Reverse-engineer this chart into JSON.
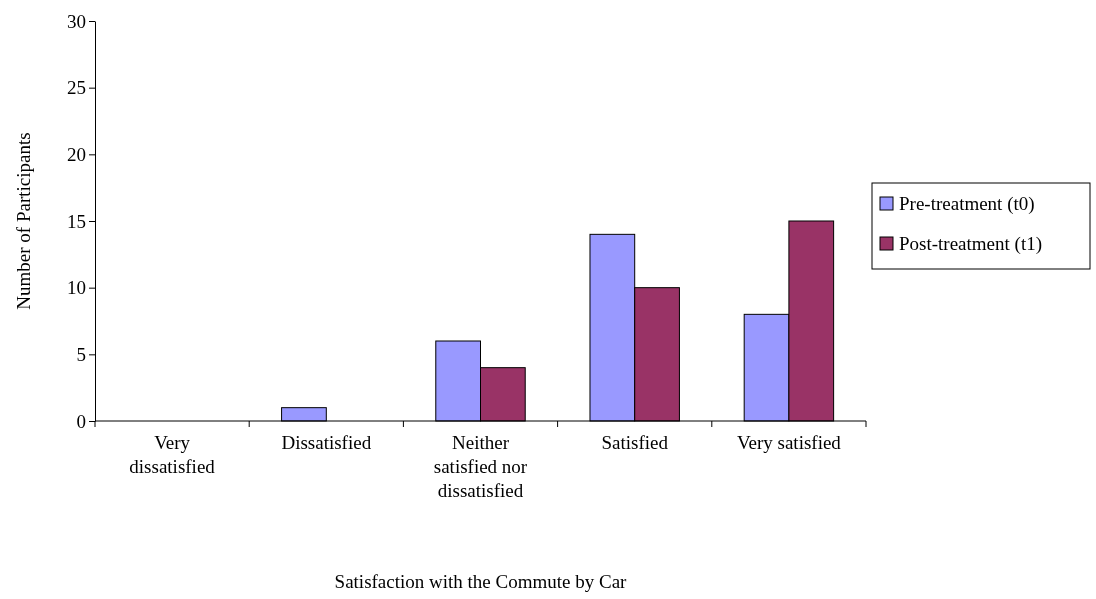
{
  "chart_data": {
    "type": "bar",
    "xlabel": "Satisfaction with the Commute by Car",
    "ylabel": "Number of Participants",
    "categories": [
      "Very dissatisfied",
      "Dissatisfied",
      "Neither satisfied nor dissatisfied",
      "Satisfied",
      "Very satisfied"
    ],
    "series": [
      {
        "name": "Pre-treatment (t0)",
        "color": "#9999ff",
        "values": [
          0,
          1,
          6,
          14,
          8
        ]
      },
      {
        "name": "Post-treatment (t1)",
        "color": "#993366",
        "values": [
          0,
          0,
          4,
          10,
          15
        ]
      }
    ],
    "ylim": [
      0,
      30
    ],
    "yticks": [
      0,
      5,
      10,
      15,
      20,
      25,
      30
    ],
    "grid": false,
    "legend": "right"
  }
}
